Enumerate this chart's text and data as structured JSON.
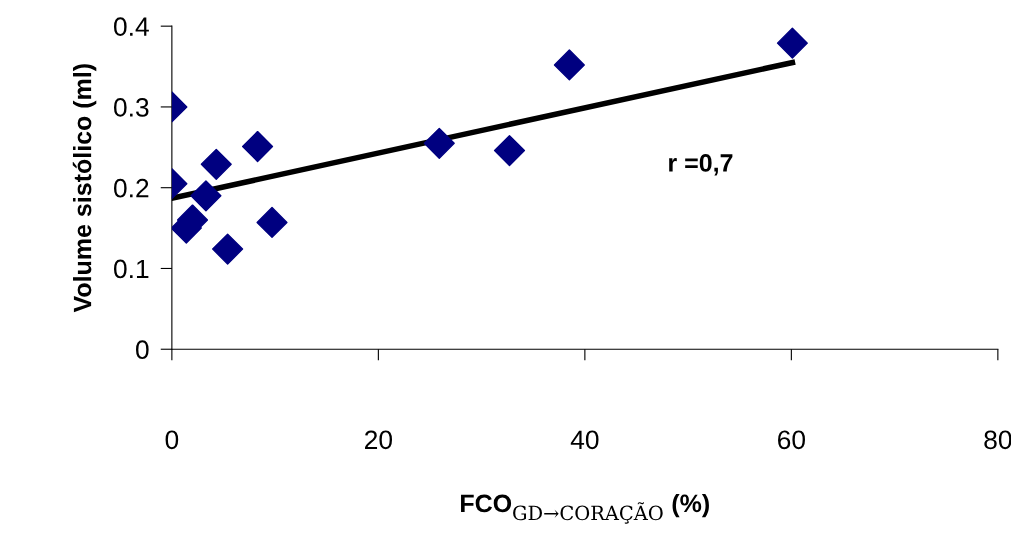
{
  "chart_data": {
    "type": "scatter",
    "xlabel": "FCO$_{GD→CORAÇÃO}$ (%)",
    "ylabel": "Volume sistólico (ml)",
    "xlim": [
      0,
      80
    ],
    "xticks": [
      0,
      20,
      40,
      60,
      80
    ],
    "ylim": [
      0,
      0.4
    ],
    "yticks": [
      0,
      0.1,
      0.2,
      0.3,
      0.4
    ],
    "grid": false,
    "legend": false,
    "series": [
      {
        "marker": "diamond",
        "color": "#000080",
        "x": [
          0,
          0,
          1.4,
          2.0,
          3.3,
          4.3,
          5.4,
          8.3,
          9.7,
          25.9,
          32.7,
          38.5,
          60.1
        ],
        "values": [
          0.3,
          0.205,
          0.15,
          0.16,
          0.19,
          0.229,
          0.124,
          0.251,
          0.157,
          0.255,
          0.246,
          0.352,
          0.379
        ]
      },
      {
        "type": "line",
        "color": "#000000",
        "line_style": "solid",
        "x": [
          0,
          60.1
        ],
        "values": [
          0.187,
          0.355
        ]
      }
    ],
    "annotations": [
      "r =0,7"
    ]
  }
}
